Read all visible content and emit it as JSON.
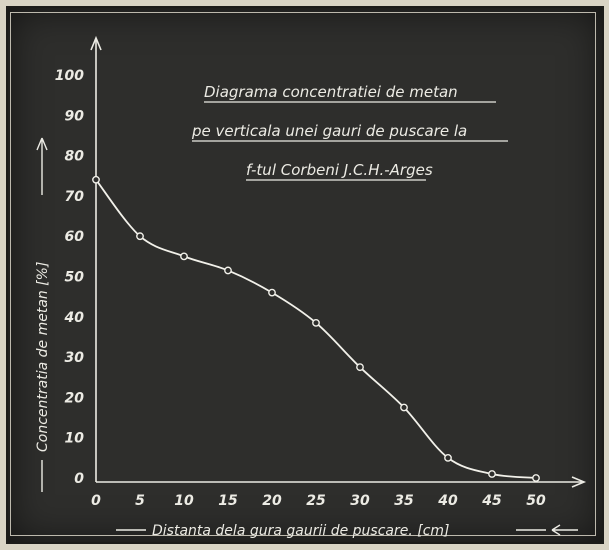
{
  "chart_data": {
    "type": "line",
    "title_lines": [
      "Diagrama concentratiei de metan",
      "pe verticala unei gauri de puscare la",
      "f-tul Corbeni J.C.H.-Arges"
    ],
    "xlabel": "Distanta dela gura gaurii de puscare. [cm]",
    "ylabel": "Concentratia de metan [%]",
    "xlim": [
      0,
      55
    ],
    "ylim": [
      0,
      100
    ],
    "xticks": [
      "0",
      "5",
      "10",
      "15",
      "20",
      "25",
      "30",
      "35",
      "40",
      "45",
      "50"
    ],
    "yticks": [
      "0",
      "10",
      "20",
      "30",
      "40",
      "50",
      "60",
      "70",
      "80",
      "90",
      "100"
    ],
    "x": [
      0,
      5,
      10,
      15,
      20,
      25,
      30,
      35,
      40,
      45,
      50
    ],
    "y": [
      74,
      60,
      55,
      51.5,
      46,
      38.5,
      27.5,
      17.5,
      5,
      1,
      0
    ],
    "grid": false,
    "legend": "none"
  }
}
